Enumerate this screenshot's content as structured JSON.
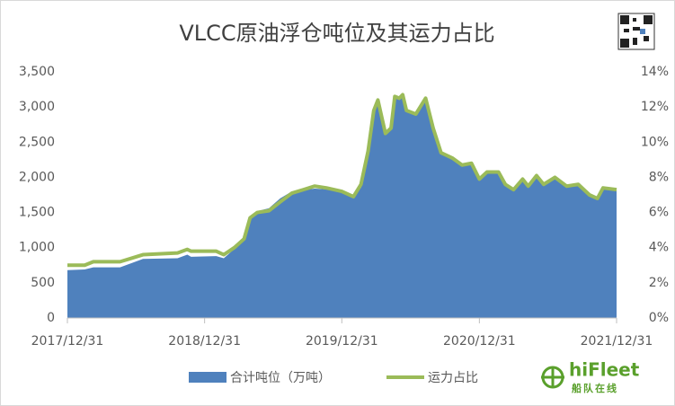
{
  "chart_data": {
    "type": "area-line",
    "title": "VLCC原油浮仓吨位及其运力占比",
    "x": [
      "2017/12/31",
      "2018/02/15",
      "2018/03/10",
      "2018/05/20",
      "2018/06/20",
      "2018/07/20",
      "2018/10/20",
      "2018/11/15",
      "2018/11/25",
      "2019/01/31",
      "2019/02/20",
      "2019/03/20",
      "2019/04/15",
      "2019/05/01",
      "2019/05/20",
      "2019/06/20",
      "2019/07/20",
      "2019/08/20",
      "2019/09/20",
      "2019/10/20",
      "2019/11/20",
      "2019/12/31",
      "2020/01/31",
      "2020/02/20",
      "2020/03/10",
      "2020/03/25",
      "2020/04/05",
      "2020/04/25",
      "2020/05/10",
      "2020/05/20",
      "2020/06/01",
      "2020/06/10",
      "2020/06/20",
      "2020/07/15",
      "2020/08/10",
      "2020/08/30",
      "2020/09/20",
      "2020/10/20",
      "2020/11/15",
      "2020/12/10",
      "2020/12/31",
      "2021/01/20",
      "2021/02/20",
      "2021/03/10",
      "2021/04/01",
      "2021/04/25",
      "2021/05/10",
      "2021/06/01",
      "2021/06/20",
      "2021/07/20",
      "2021/08/20",
      "2021/09/20",
      "2021/10/20",
      "2021/11/10",
      "2021/11/25",
      "2021/12/31"
    ],
    "series": [
      {
        "name": "合计吨位（万吨）",
        "color": "#4f81bd",
        "values": [
          680,
          690,
          720,
          720,
          780,
          840,
          850,
          900,
          870,
          880,
          850,
          980,
          1100,
          1450,
          1520,
          1560,
          1700,
          1800,
          1820,
          1840,
          1830,
          1780,
          1750,
          1850,
          2300,
          2900,
          3050,
          2600,
          2700,
          3150,
          3100,
          3200,
          2950,
          2900,
          3150,
          2700,
          2350,
          2250,
          2150,
          2200,
          1950,
          2080,
          2070,
          1900,
          1830,
          1990,
          1870,
          2050,
          1900,
          2010,
          1850,
          1900,
          1750,
          1700,
          1850,
          1820
        ]
      },
      {
        "name": "运力占比",
        "color": "#9bbb59",
        "axis": "y2",
        "values": [
          3.0,
          3.0,
          3.2,
          3.2,
          3.4,
          3.6,
          3.7,
          3.9,
          3.8,
          3.8,
          3.6,
          4.0,
          4.5,
          5.7,
          6.0,
          6.1,
          6.6,
          7.1,
          7.3,
          7.5,
          7.4,
          7.2,
          6.9,
          7.6,
          9.5,
          11.8,
          12.4,
          10.5,
          10.8,
          12.6,
          12.5,
          12.7,
          11.8,
          11.6,
          12.5,
          10.8,
          9.4,
          9.1,
          8.7,
          8.8,
          7.9,
          8.3,
          8.3,
          7.6,
          7.3,
          7.9,
          7.5,
          8.1,
          7.6,
          8.0,
          7.5,
          7.6,
          7.0,
          6.8,
          7.4,
          7.3
        ]
      }
    ],
    "xlim": [
      "2017/12/31",
      "2021/12/31"
    ],
    "xticks": [
      "2017/12/31",
      "2018/12/31",
      "2019/12/31",
      "2020/12/31",
      "2021/12/31"
    ],
    "ylim": [
      0,
      3500
    ],
    "yticks": [
      0,
      500,
      {
        "value": 1000,
        "label": "1,000"
      },
      {
        "value": 1500,
        "label": "1,500"
      },
      {
        "value": 2000,
        "label": "2,000"
      },
      {
        "value": 2500,
        "label": "2,500"
      },
      {
        "value": 3000,
        "label": "3,000"
      },
      {
        "value": 3500,
        "label": "3,500"
      }
    ],
    "y2lim": [
      0,
      14
    ],
    "y2ticks": [
      {
        "value": 0,
        "label": "0%"
      },
      {
        "value": 2,
        "label": "2%"
      },
      {
        "value": 4,
        "label": "4%"
      },
      {
        "value": 6,
        "label": "6%"
      },
      {
        "value": 8,
        "label": "8%"
      },
      {
        "value": 10,
        "label": "10%"
      },
      {
        "value": 12,
        "label": "12%"
      },
      {
        "value": 14,
        "label": "14%"
      }
    ],
    "legend": "bottom",
    "logo": {
      "name": "hiFleet",
      "subtitle": "船队在线"
    }
  }
}
